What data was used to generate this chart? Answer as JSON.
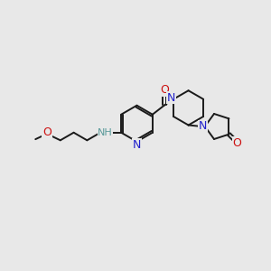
{
  "bg_color": "#e8e8e8",
  "bond_color": "#1a1a1a",
  "N_color": "#2020cc",
  "O_color": "#cc1010",
  "NH_color": "#5a9a9a",
  "figsize": [
    3.0,
    3.0
  ],
  "dpi": 100,
  "xlim": [
    0,
    10
  ],
  "ylim": [
    0,
    10
  ]
}
